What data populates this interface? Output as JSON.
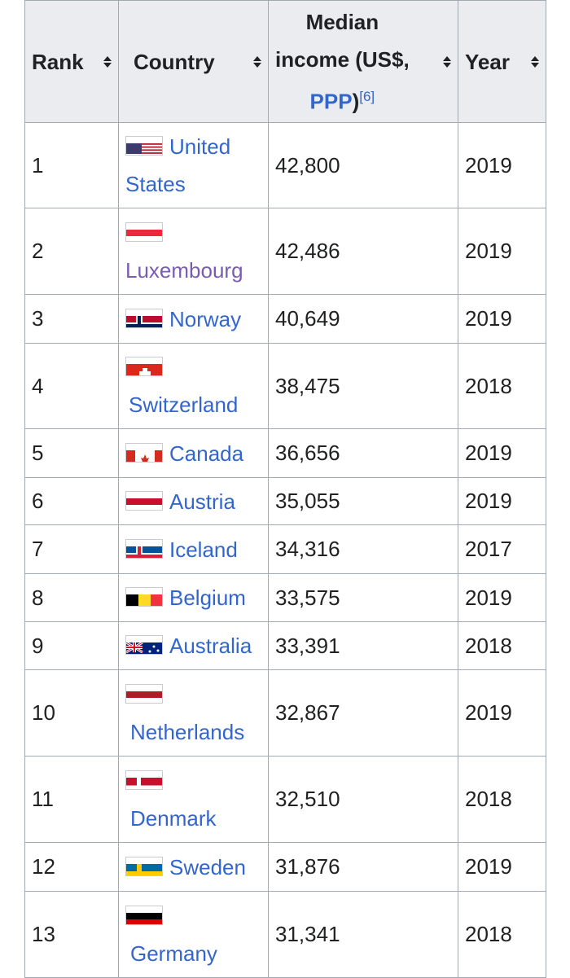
{
  "table": {
    "headers": {
      "rank": "Rank",
      "country": "Country",
      "income_line1": "Median",
      "income_line2": "income (US$,",
      "income_link": "PPP",
      "income_close": ")",
      "income_ref": "[6]",
      "year": "Year"
    },
    "rows": [
      {
        "rank": "1",
        "country": "United States",
        "flag": "flag-usa-icon",
        "income": "42,800",
        "year": "2019"
      },
      {
        "rank": "2",
        "country": "Luxembourg",
        "flag": "flag-luxembourg-icon",
        "income": "42,486",
        "year": "2019"
      },
      {
        "rank": "3",
        "country": "Norway",
        "flag": "flag-norway-icon",
        "income": "40,649",
        "year": "2019"
      },
      {
        "rank": "4",
        "country": "Switzerland",
        "flag": "flag-switzerland-icon",
        "income": "38,475",
        "year": "2018"
      },
      {
        "rank": "5",
        "country": "Canada",
        "flag": "flag-canada-icon",
        "income": "36,656",
        "year": "2019"
      },
      {
        "rank": "6",
        "country": "Austria",
        "flag": "flag-austria-icon",
        "income": "35,055",
        "year": "2019"
      },
      {
        "rank": "7",
        "country": "Iceland",
        "flag": "flag-iceland-icon",
        "income": "34,316",
        "year": "2017"
      },
      {
        "rank": "8",
        "country": "Belgium",
        "flag": "flag-belgium-icon",
        "income": "33,575",
        "year": "2019"
      },
      {
        "rank": "9",
        "country": "Australia",
        "flag": "flag-australia-icon",
        "income": "33,391",
        "year": "2018"
      },
      {
        "rank": "10",
        "country": "Netherlands",
        "flag": "flag-netherlands-icon",
        "income": "32,867",
        "year": "2019"
      },
      {
        "rank": "11",
        "country": "Denmark",
        "flag": "flag-denmark-icon",
        "income": "32,510",
        "year": "2018"
      },
      {
        "rank": "12",
        "country": "Sweden",
        "flag": "flag-sweden-icon",
        "income": "31,876",
        "year": "2019"
      },
      {
        "rank": "13",
        "country": "Germany",
        "flag": "flag-germany-icon",
        "income": "31,341",
        "year": "2018"
      }
    ]
  },
  "colors": {
    "link": "#3366cc",
    "visited_link": "#795cb2",
    "header_bg": "#eaecf0",
    "border": "#a2a9b1"
  }
}
